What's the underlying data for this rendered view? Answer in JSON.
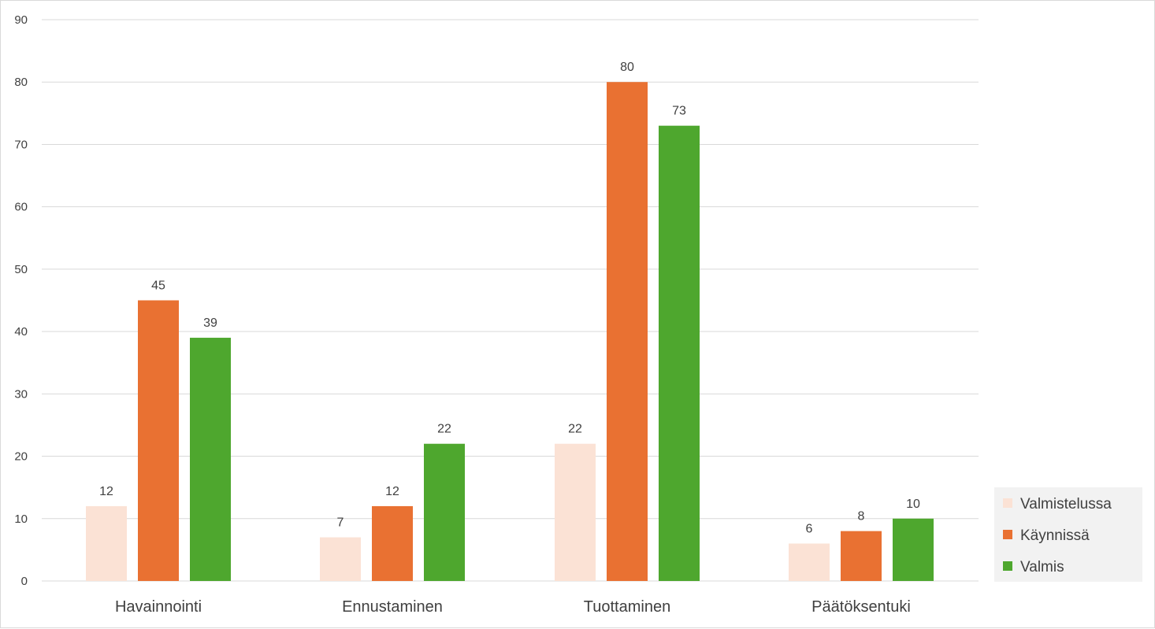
{
  "chart_data": {
    "type": "bar",
    "categories": [
      "Havainnointi",
      "Ennustaminen",
      "Tuottaminen",
      "Päätöksentuki"
    ],
    "series": [
      {
        "name": "Valmistelussa",
        "values": [
          12,
          7,
          22,
          6
        ],
        "color": "#FBE2D5"
      },
      {
        "name": "Käynnissä",
        "values": [
          45,
          12,
          80,
          8
        ],
        "color": "#E97132"
      },
      {
        "name": "Valmis",
        "values": [
          39,
          22,
          73,
          10
        ],
        "color": "#4EA72E"
      }
    ],
    "ylim": [
      0,
      90
    ],
    "yticks": [
      0,
      10,
      20,
      30,
      40,
      50,
      60,
      70,
      80,
      90
    ],
    "grid": true,
    "data_labels": true,
    "legend_position": "right",
    "legend_background": "#F2F2F2",
    "gridline_color": "#D9D9D9"
  }
}
